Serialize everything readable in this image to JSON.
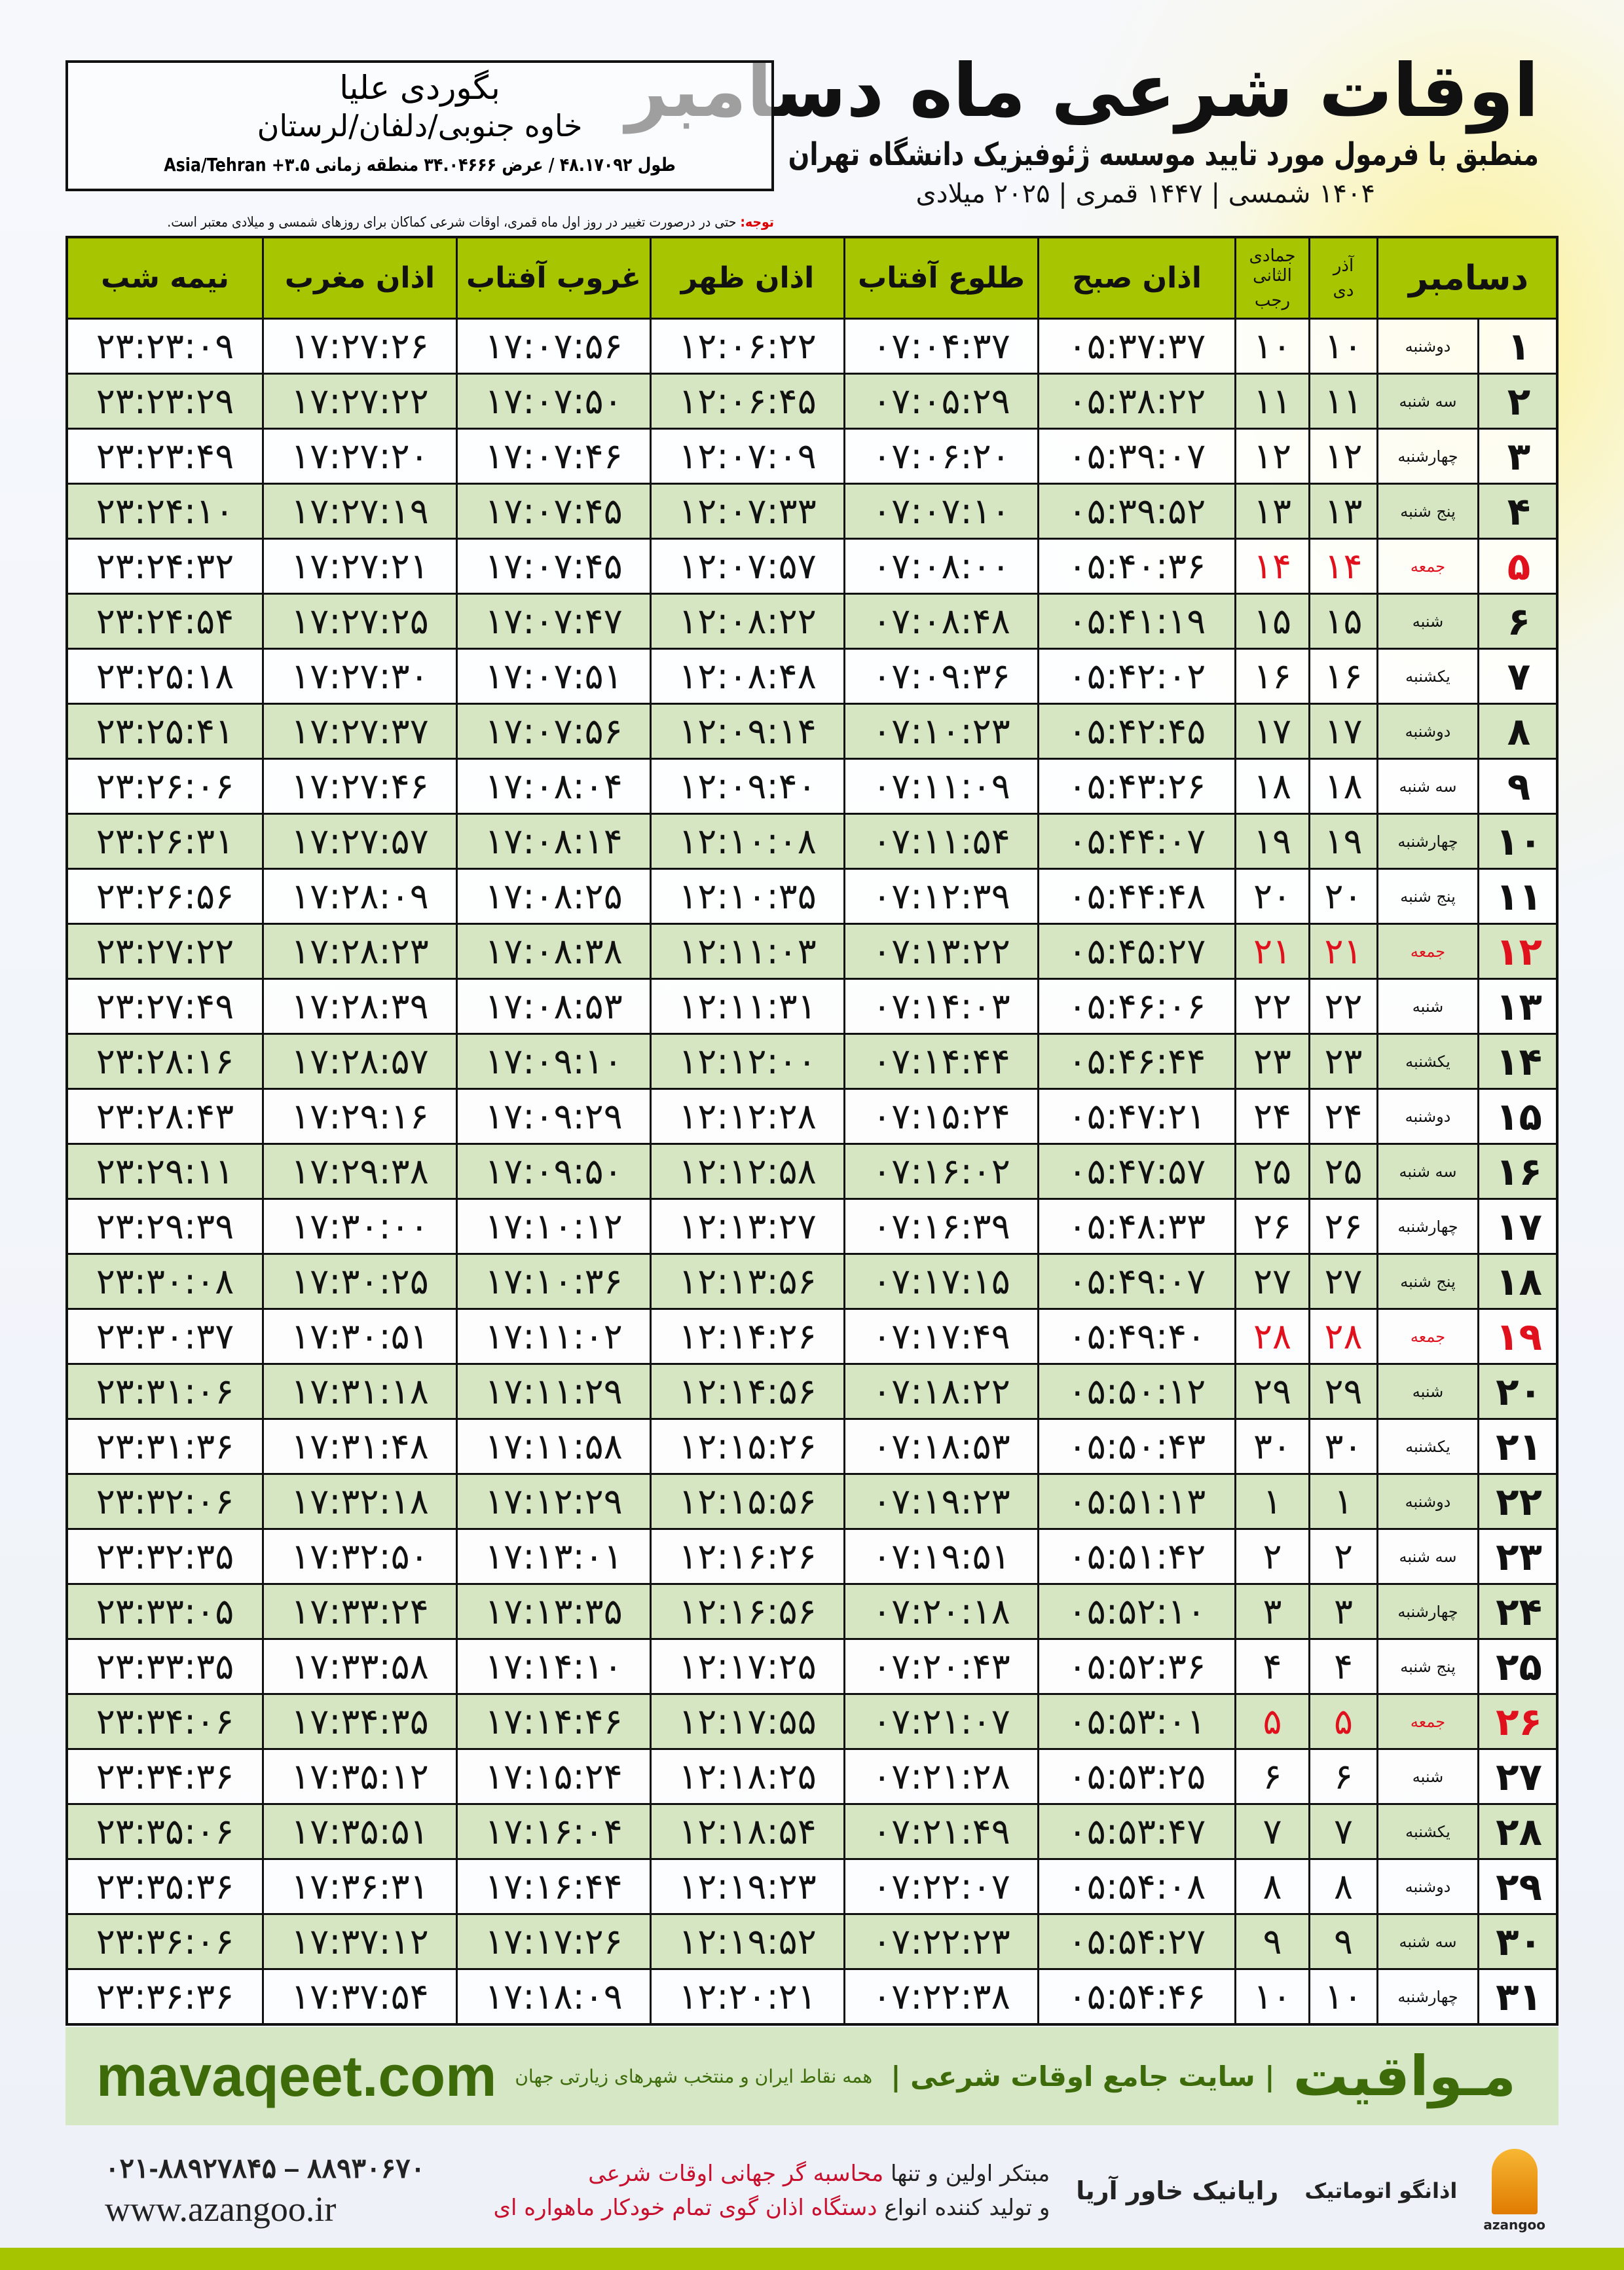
{
  "header": {
    "title": "اوقات شرعی ماه دسامبر",
    "subtitle": "منطبق با فرمول مورد تایید موسسه ژئوفیزیک دانشگاه تهران",
    "dates": "۱۴۰۴ شمسی | ۱۴۴۷ قمری | ۲۰۲۵ میلادی"
  },
  "location": {
    "name": "بگوردی علیا",
    "region": "خاوه جنوبی/دلفان/لرستان",
    "coords": "طول ۴۸.۱۷۰۹۲ / عرض ۳۴.۰۴۶۶۶ منطقه زمانی ۳.۵+ Asia/Tehran"
  },
  "note": {
    "label": "توجه:",
    "text": " حتی در درصورت تغییر در روز اول ماه قمری، اوقات شرعی کماکان برای روزهای شمسی و میلادی معتبر است."
  },
  "columns": {
    "midnight": "نیمه شب",
    "maghrib": "اذان مغرب",
    "sunset": "غروب آفتاب",
    "dhuhr": "اذان ظهر",
    "sunrise": "طلوع آفتاب",
    "fajr": "اذان صبح",
    "hijri_top": "جمادی الثانی",
    "hijri_bottom": "رجب",
    "shamsi_top": "آذر",
    "shamsi_bottom": "دی",
    "month": "دسامبر"
  },
  "colors": {
    "header": "#a7c500",
    "row_alt": "#d6e6c2",
    "friday": "#e0101c"
  },
  "rows": [
    [
      "۱",
      "دوشنبه",
      "۱۰",
      "۱۰",
      "۰۵:۳۷:۳۷",
      "۰۷:۰۴:۳۷",
      "۱۲:۰۶:۲۲",
      "۱۷:۰۷:۵۶",
      "۱۷:۲۷:۲۶",
      "۲۳:۲۳:۰۹"
    ],
    [
      "۲",
      "سه شنبه",
      "۱۱",
      "۱۱",
      "۰۵:۳۸:۲۲",
      "۰۷:۰۵:۲۹",
      "۱۲:۰۶:۴۵",
      "۱۷:۰۷:۵۰",
      "۱۷:۲۷:۲۲",
      "۲۳:۲۳:۲۹"
    ],
    [
      "۳",
      "چهارشنبه",
      "۱۲",
      "۱۲",
      "۰۵:۳۹:۰۷",
      "۰۷:۰۶:۲۰",
      "۱۲:۰۷:۰۹",
      "۱۷:۰۷:۴۶",
      "۱۷:۲۷:۲۰",
      "۲۳:۲۳:۴۹"
    ],
    [
      "۴",
      "پنج شنبه",
      "۱۳",
      "۱۳",
      "۰۵:۳۹:۵۲",
      "۰۷:۰۷:۱۰",
      "۱۲:۰۷:۳۳",
      "۱۷:۰۷:۴۵",
      "۱۷:۲۷:۱۹",
      "۲۳:۲۴:۱۰"
    ],
    [
      "۵",
      "جمعه",
      "۱۴",
      "۱۴",
      "۰۵:۴۰:۳۶",
      "۰۷:۰۸:۰۰",
      "۱۲:۰۷:۵۷",
      "۱۷:۰۷:۴۵",
      "۱۷:۲۷:۲۱",
      "۲۳:۲۴:۳۲"
    ],
    [
      "۶",
      "شنبه",
      "۱۵",
      "۱۵",
      "۰۵:۴۱:۱۹",
      "۰۷:۰۸:۴۸",
      "۱۲:۰۸:۲۲",
      "۱۷:۰۷:۴۷",
      "۱۷:۲۷:۲۵",
      "۲۳:۲۴:۵۴"
    ],
    [
      "۷",
      "یکشنبه",
      "۱۶",
      "۱۶",
      "۰۵:۴۲:۰۲",
      "۰۷:۰۹:۳۶",
      "۱۲:۰۸:۴۸",
      "۱۷:۰۷:۵۱",
      "۱۷:۲۷:۳۰",
      "۲۳:۲۵:۱۸"
    ],
    [
      "۸",
      "دوشنبه",
      "۱۷",
      "۱۷",
      "۰۵:۴۲:۴۵",
      "۰۷:۱۰:۲۳",
      "۱۲:۰۹:۱۴",
      "۱۷:۰۷:۵۶",
      "۱۷:۲۷:۳۷",
      "۲۳:۲۵:۴۱"
    ],
    [
      "۹",
      "سه شنبه",
      "۱۸",
      "۱۸",
      "۰۵:۴۳:۲۶",
      "۰۷:۱۱:۰۹",
      "۱۲:۰۹:۴۰",
      "۱۷:۰۸:۰۴",
      "۱۷:۲۷:۴۶",
      "۲۳:۲۶:۰۶"
    ],
    [
      "۱۰",
      "چهارشنبه",
      "۱۹",
      "۱۹",
      "۰۵:۴۴:۰۷",
      "۰۷:۱۱:۵۴",
      "۱۲:۱۰:۰۸",
      "۱۷:۰۸:۱۴",
      "۱۷:۲۷:۵۷",
      "۲۳:۲۶:۳۱"
    ],
    [
      "۱۱",
      "پنج شنبه",
      "۲۰",
      "۲۰",
      "۰۵:۴۴:۴۸",
      "۰۷:۱۲:۳۹",
      "۱۲:۱۰:۳۵",
      "۱۷:۰۸:۲۵",
      "۱۷:۲۸:۰۹",
      "۲۳:۲۶:۵۶"
    ],
    [
      "۱۲",
      "جمعه",
      "۲۱",
      "۲۱",
      "۰۵:۴۵:۲۷",
      "۰۷:۱۳:۲۲",
      "۱۲:۱۱:۰۳",
      "۱۷:۰۸:۳۸",
      "۱۷:۲۸:۲۳",
      "۲۳:۲۷:۲۲"
    ],
    [
      "۱۳",
      "شنبه",
      "۲۲",
      "۲۲",
      "۰۵:۴۶:۰۶",
      "۰۷:۱۴:۰۳",
      "۱۲:۱۱:۳۱",
      "۱۷:۰۸:۵۳",
      "۱۷:۲۸:۳۹",
      "۲۳:۲۷:۴۹"
    ],
    [
      "۱۴",
      "یکشنبه",
      "۲۳",
      "۲۳",
      "۰۵:۴۶:۴۴",
      "۰۷:۱۴:۴۴",
      "۱۲:۱۲:۰۰",
      "۱۷:۰۹:۱۰",
      "۱۷:۲۸:۵۷",
      "۲۳:۲۸:۱۶"
    ],
    [
      "۱۵",
      "دوشنبه",
      "۲۴",
      "۲۴",
      "۰۵:۴۷:۲۱",
      "۰۷:۱۵:۲۴",
      "۱۲:۱۲:۲۸",
      "۱۷:۰۹:۲۹",
      "۱۷:۲۹:۱۶",
      "۲۳:۲۸:۴۳"
    ],
    [
      "۱۶",
      "سه شنبه",
      "۲۵",
      "۲۵",
      "۰۵:۴۷:۵۷",
      "۰۷:۱۶:۰۲",
      "۱۲:۱۲:۵۸",
      "۱۷:۰۹:۵۰",
      "۱۷:۲۹:۳۸",
      "۲۳:۲۹:۱۱"
    ],
    [
      "۱۷",
      "چهارشنبه",
      "۲۶",
      "۲۶",
      "۰۵:۴۸:۳۳",
      "۰۷:۱۶:۳۹",
      "۱۲:۱۳:۲۷",
      "۱۷:۱۰:۱۲",
      "۱۷:۳۰:۰۰",
      "۲۳:۲۹:۳۹"
    ],
    [
      "۱۸",
      "پنج شنبه",
      "۲۷",
      "۲۷",
      "۰۵:۴۹:۰۷",
      "۰۷:۱۷:۱۵",
      "۱۲:۱۳:۵۶",
      "۱۷:۱۰:۳۶",
      "۱۷:۳۰:۲۵",
      "۲۳:۳۰:۰۸"
    ],
    [
      "۱۹",
      "جمعه",
      "۲۸",
      "۲۸",
      "۰۵:۴۹:۴۰",
      "۰۷:۱۷:۴۹",
      "۱۲:۱۴:۲۶",
      "۱۷:۱۱:۰۲",
      "۱۷:۳۰:۵۱",
      "۲۳:۳۰:۳۷"
    ],
    [
      "۲۰",
      "شنبه",
      "۲۹",
      "۲۹",
      "۰۵:۵۰:۱۲",
      "۰۷:۱۸:۲۲",
      "۱۲:۱۴:۵۶",
      "۱۷:۱۱:۲۹",
      "۱۷:۳۱:۱۸",
      "۲۳:۳۱:۰۶"
    ],
    [
      "۲۱",
      "یکشنبه",
      "۳۰",
      "۳۰",
      "۰۵:۵۰:۴۳",
      "۰۷:۱۸:۵۳",
      "۱۲:۱۵:۲۶",
      "۱۷:۱۱:۵۸",
      "۱۷:۳۱:۴۸",
      "۲۳:۳۱:۳۶"
    ],
    [
      "۲۲",
      "دوشنبه",
      "۱",
      "۱",
      "۰۵:۵۱:۱۳",
      "۰۷:۱۹:۲۳",
      "۱۲:۱۵:۵۶",
      "۱۷:۱۲:۲۹",
      "۱۷:۳۲:۱۸",
      "۲۳:۳۲:۰۶"
    ],
    [
      "۲۳",
      "سه شنبه",
      "۲",
      "۲",
      "۰۵:۵۱:۴۲",
      "۰۷:۱۹:۵۱",
      "۱۲:۱۶:۲۶",
      "۱۷:۱۳:۰۱",
      "۱۷:۳۲:۵۰",
      "۲۳:۳۲:۳۵"
    ],
    [
      "۲۴",
      "چهارشنبه",
      "۳",
      "۳",
      "۰۵:۵۲:۱۰",
      "۰۷:۲۰:۱۸",
      "۱۲:۱۶:۵۶",
      "۱۷:۱۳:۳۵",
      "۱۷:۳۳:۲۴",
      "۲۳:۳۳:۰۵"
    ],
    [
      "۲۵",
      "پنج شنبه",
      "۴",
      "۴",
      "۰۵:۵۲:۳۶",
      "۰۷:۲۰:۴۳",
      "۱۲:۱۷:۲۵",
      "۱۷:۱۴:۱۰",
      "۱۷:۳۳:۵۸",
      "۲۳:۳۳:۳۵"
    ],
    [
      "۲۶",
      "جمعه",
      "۵",
      "۵",
      "۰۵:۵۳:۰۱",
      "۰۷:۲۱:۰۷",
      "۱۲:۱۷:۵۵",
      "۱۷:۱۴:۴۶",
      "۱۷:۳۴:۳۵",
      "۲۳:۳۴:۰۶"
    ],
    [
      "۲۷",
      "شنبه",
      "۶",
      "۶",
      "۰۵:۵۳:۲۵",
      "۰۷:۲۱:۲۸",
      "۱۲:۱۸:۲۵",
      "۱۷:۱۵:۲۴",
      "۱۷:۳۵:۱۲",
      "۲۳:۳۴:۳۶"
    ],
    [
      "۲۸",
      "یکشنبه",
      "۷",
      "۷",
      "۰۵:۵۳:۴۷",
      "۰۷:۲۱:۴۹",
      "۱۲:۱۸:۵۴",
      "۱۷:۱۶:۰۴",
      "۱۷:۳۵:۵۱",
      "۲۳:۳۵:۰۶"
    ],
    [
      "۲۹",
      "دوشنبه",
      "۸",
      "۸",
      "۰۵:۵۴:۰۸",
      "۰۷:۲۲:۰۷",
      "۱۲:۱۹:۲۳",
      "۱۷:۱۶:۴۴",
      "۱۷:۳۶:۳۱",
      "۲۳:۳۵:۳۶"
    ],
    [
      "۳۰",
      "سه شنبه",
      "۹",
      "۹",
      "۰۵:۵۴:۲۷",
      "۰۷:۲۲:۲۳",
      "۱۲:۱۹:۵۲",
      "۱۷:۱۷:۲۶",
      "۱۷:۳۷:۱۲",
      "۲۳:۳۶:۰۶"
    ],
    [
      "۳۱",
      "چهارشنبه",
      "۱۰",
      "۱۰",
      "۰۵:۵۴:۴۶",
      "۰۷:۲۲:۳۸",
      "۱۲:۲۰:۲۱",
      "۱۷:۱۸:۰۹",
      "۱۷:۳۷:۵۴",
      "۲۳:۳۶:۳۶"
    ]
  ],
  "banner": {
    "site": "mavaqeet.com",
    "logo": "مـواقیت",
    "tagline": "| سایت جامع اوقات شرعی |",
    "sub": "همه نقاط ایران و منتخب شهرهای زیارتی جهان"
  },
  "footer": {
    "phone": "۰۲۱-۸۸۹۲۷۸۴۵ – ۸۸۹۳۰۶۷۰",
    "web": "www.azangoo.ir",
    "line1_a": "مبتکر اولین و تنها ",
    "line1_b": "محاسبه گر جهانی اوقات شرعی",
    "line2_a": "و تولید کننده انواع ",
    "line2_b": "دستگاه اذان گوی تمام خودکار ماهواره ای",
    "logo_rayanik": "رایانیک خاور آریا",
    "logo_azangoo": "اذانگو اتوماتیک",
    "logo_azangoo_sub": "azangoo"
  }
}
